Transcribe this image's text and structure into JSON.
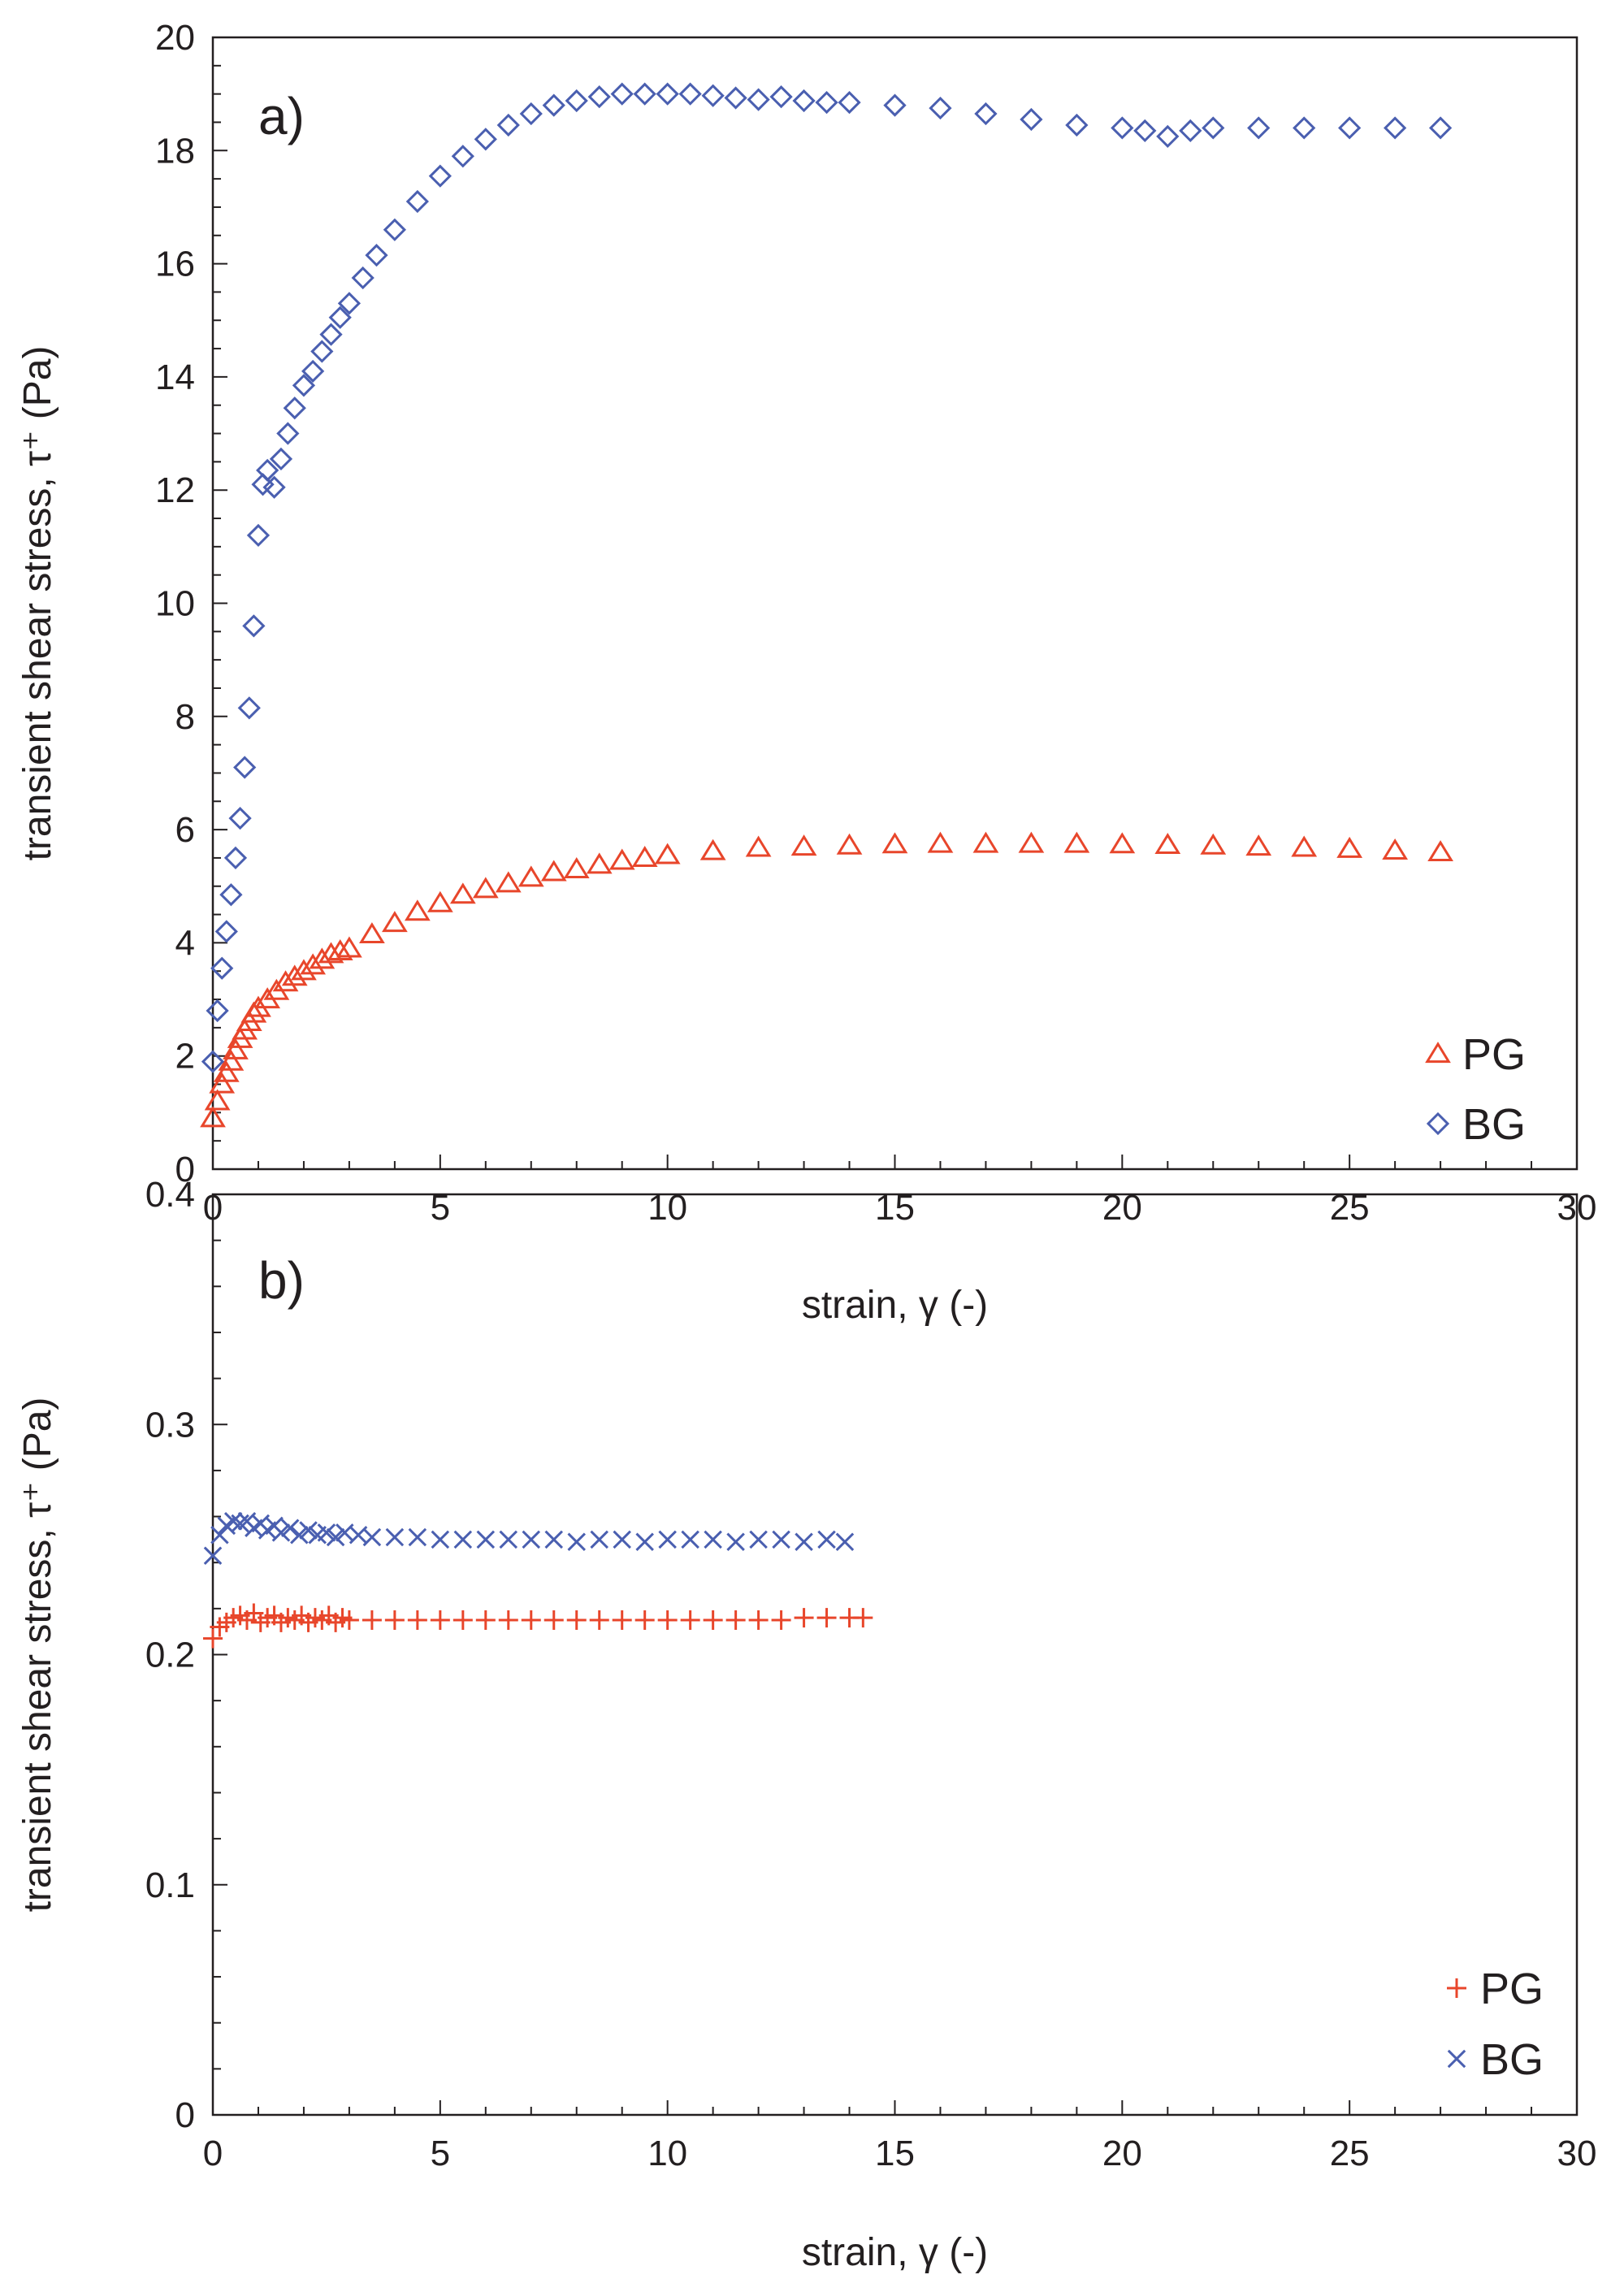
{
  "chart_data": [
    {
      "type": "scatter",
      "panel_label": "a)",
      "xlabel": "strain, γ (-)",
      "ylabel": "transient shear stress, τ⁺ (Pa)",
      "xlim": [
        0,
        30
      ],
      "ylim": [
        0,
        20
      ],
      "x_ticks": [
        "0",
        "5",
        "10",
        "15",
        "20",
        "25",
        "30"
      ],
      "y_ticks": [
        "0",
        "2",
        "4",
        "6",
        "8",
        "10",
        "12",
        "14",
        "16",
        "18",
        "20"
      ],
      "legend_position": "bottom-right",
      "series": [
        {
          "name": "PG",
          "marker": "triangle",
          "color": "#e8462b",
          "x": [
            0.0,
            0.1,
            0.2,
            0.3,
            0.4,
            0.5,
            0.6,
            0.7,
            0.8,
            0.9,
            1.0,
            1.2,
            1.4,
            1.6,
            1.8,
            2.0,
            2.2,
            2.4,
            2.6,
            2.8,
            3.0,
            3.5,
            4.0,
            4.5,
            5.0,
            5.5,
            6.0,
            6.5,
            7.0,
            7.5,
            8.0,
            8.5,
            9.0,
            9.5,
            10.0,
            11.0,
            12.0,
            13.0,
            14.0,
            15.0,
            16.0,
            17.0,
            18.0,
            19.0,
            20.0,
            21.0,
            22.0,
            23.0,
            24.0,
            25.0,
            26.0,
            27.0
          ],
          "y": [
            0.9,
            1.2,
            1.5,
            1.7,
            1.9,
            2.1,
            2.3,
            2.45,
            2.6,
            2.75,
            2.85,
            3.0,
            3.15,
            3.3,
            3.4,
            3.5,
            3.6,
            3.7,
            3.8,
            3.85,
            3.9,
            4.15,
            4.35,
            4.55,
            4.7,
            4.85,
            4.95,
            5.05,
            5.15,
            5.25,
            5.3,
            5.38,
            5.45,
            5.5,
            5.55,
            5.62,
            5.68,
            5.7,
            5.72,
            5.74,
            5.75,
            5.75,
            5.75,
            5.75,
            5.74,
            5.73,
            5.72,
            5.7,
            5.68,
            5.66,
            5.63,
            5.6
          ]
        },
        {
          "name": "BG",
          "marker": "diamond",
          "color": "#4a5fb0",
          "x": [
            0.0,
            0.1,
            0.2,
            0.3,
            0.4,
            0.5,
            0.6,
            0.7,
            0.8,
            0.9,
            1.0,
            1.1,
            1.2,
            1.35,
            1.5,
            1.65,
            1.8,
            2.0,
            2.2,
            2.4,
            2.6,
            2.8,
            3.0,
            3.3,
            3.6,
            4.0,
            4.5,
            5.0,
            5.5,
            6.0,
            6.5,
            7.0,
            7.5,
            8.0,
            8.5,
            9.0,
            9.5,
            10.0,
            10.5,
            11.0,
            11.5,
            12.0,
            12.5,
            13.0,
            13.5,
            14.0,
            15.0,
            16.0,
            17.0,
            18.0,
            19.0,
            20.0,
            20.5,
            21.0,
            21.5,
            22.0,
            23.0,
            24.0,
            25.0,
            26.0,
            27.0
          ],
          "y": [
            1.9,
            2.8,
            3.55,
            4.2,
            4.85,
            5.5,
            6.2,
            7.1,
            8.15,
            9.6,
            11.2,
            12.1,
            12.35,
            12.05,
            12.55,
            13.0,
            13.45,
            13.85,
            14.1,
            14.45,
            14.75,
            15.05,
            15.3,
            15.75,
            16.15,
            16.6,
            17.1,
            17.55,
            17.9,
            18.2,
            18.45,
            18.65,
            18.8,
            18.88,
            18.95,
            19.0,
            19.0,
            19.0,
            19.0,
            18.97,
            18.93,
            18.9,
            18.95,
            18.88,
            18.85,
            18.85,
            18.8,
            18.75,
            18.65,
            18.55,
            18.45,
            18.4,
            18.35,
            18.25,
            18.35,
            18.4,
            18.4,
            18.4,
            18.4,
            18.4,
            18.4
          ]
        }
      ]
    },
    {
      "type": "scatter",
      "panel_label": "b)",
      "xlabel": "strain, γ (-)",
      "ylabel": "transient shear stress, τ⁺ (Pa)",
      "xlim": [
        0,
        30
      ],
      "ylim": [
        0,
        0.4
      ],
      "x_ticks": [
        "0",
        "5",
        "10",
        "15",
        "20",
        "25",
        "30"
      ],
      "y_ticks": [
        "0",
        "0.1",
        "0.2",
        "0.3",
        "0.4"
      ],
      "legend_position": "bottom-right",
      "series": [
        {
          "name": "PG",
          "marker": "plus",
          "color": "#e8462b",
          "x": [
            0.0,
            0.15,
            0.3,
            0.45,
            0.6,
            0.75,
            0.9,
            1.05,
            1.2,
            1.35,
            1.5,
            1.65,
            1.8,
            1.95,
            2.1,
            2.25,
            2.4,
            2.55,
            2.7,
            2.85,
            3.0,
            3.5,
            4.0,
            4.5,
            5.0,
            5.5,
            6.0,
            6.5,
            7.0,
            7.5,
            8.0,
            8.5,
            9.0,
            9.5,
            10.0,
            10.5,
            11.0,
            11.5,
            12.0,
            12.5,
            13.0,
            13.5,
            14.0,
            14.3
          ],
          "y": [
            0.207,
            0.212,
            0.214,
            0.216,
            0.217,
            0.215,
            0.218,
            0.214,
            0.216,
            0.217,
            0.214,
            0.216,
            0.215,
            0.217,
            0.214,
            0.216,
            0.215,
            0.217,
            0.214,
            0.216,
            0.215,
            0.215,
            0.215,
            0.215,
            0.215,
            0.215,
            0.215,
            0.215,
            0.215,
            0.215,
            0.215,
            0.215,
            0.215,
            0.215,
            0.215,
            0.215,
            0.215,
            0.215,
            0.215,
            0.215,
            0.216,
            0.216,
            0.216,
            0.216
          ]
        },
        {
          "name": "BG",
          "marker": "x",
          "color": "#4a5fb0",
          "x": [
            0.0,
            0.15,
            0.3,
            0.45,
            0.6,
            0.75,
            0.9,
            1.05,
            1.2,
            1.35,
            1.5,
            1.7,
            1.9,
            2.1,
            2.3,
            2.5,
            2.7,
            2.9,
            3.2,
            3.5,
            4.0,
            4.5,
            5.0,
            5.5,
            6.0,
            6.5,
            7.0,
            7.5,
            8.0,
            8.5,
            9.0,
            9.5,
            10.0,
            10.5,
            11.0,
            11.5,
            12.0,
            12.5,
            13.0,
            13.5,
            13.9
          ],
          "y": [
            0.243,
            0.252,
            0.256,
            0.258,
            0.257,
            0.258,
            0.255,
            0.257,
            0.254,
            0.256,
            0.253,
            0.255,
            0.252,
            0.254,
            0.252,
            0.253,
            0.251,
            0.253,
            0.252,
            0.251,
            0.251,
            0.251,
            0.25,
            0.25,
            0.25,
            0.25,
            0.25,
            0.25,
            0.249,
            0.25,
            0.25,
            0.249,
            0.25,
            0.25,
            0.25,
            0.249,
            0.25,
            0.25,
            0.249,
            0.25,
            0.249
          ]
        }
      ]
    }
  ]
}
